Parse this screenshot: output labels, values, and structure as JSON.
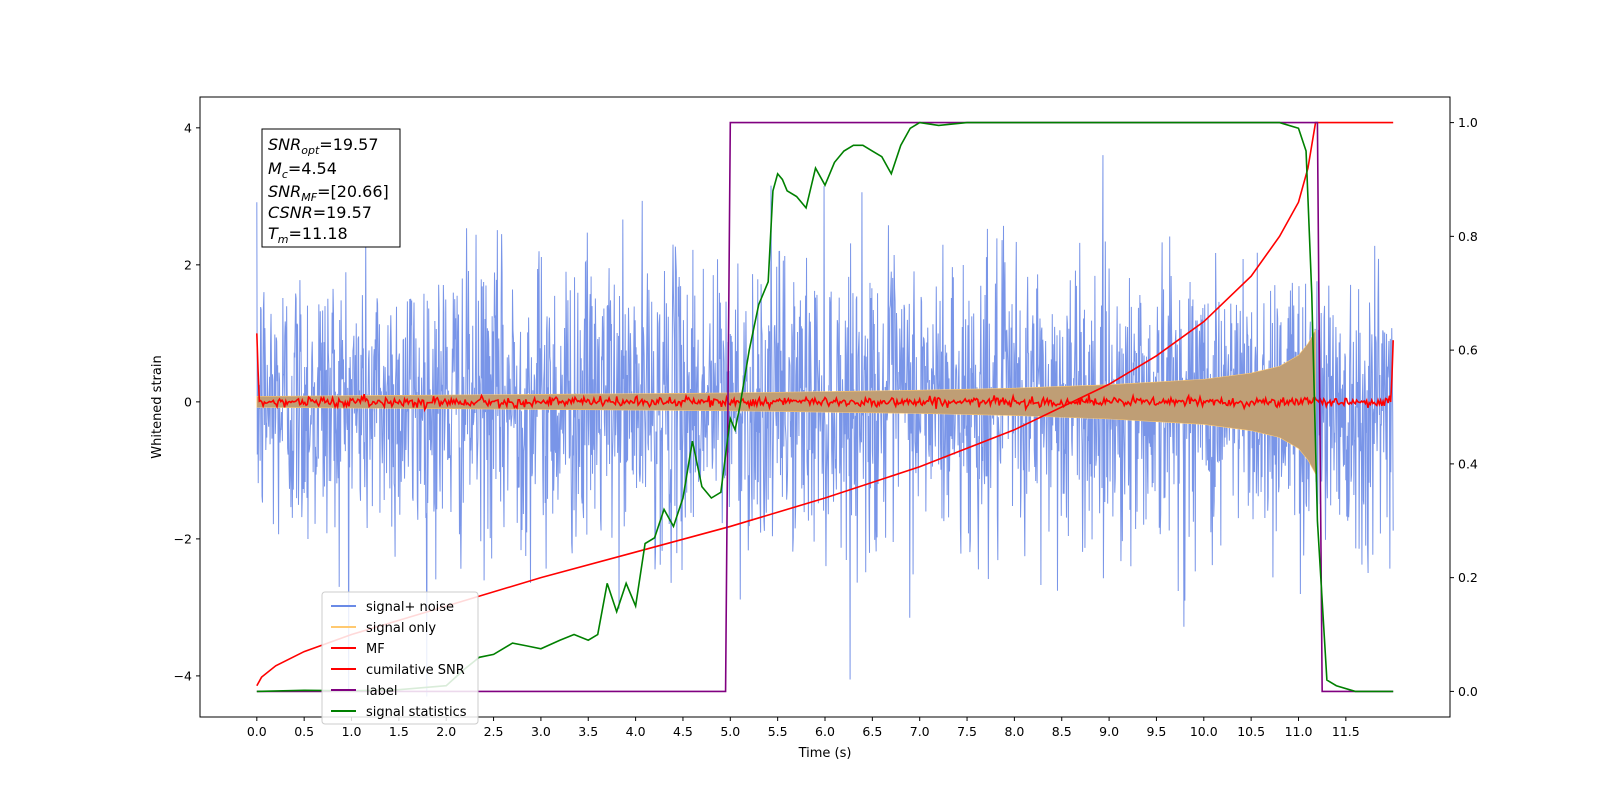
{
  "chart_data": {
    "type": "line",
    "xlabel": "Time (s)",
    "ylabel_left": "Whitened strain",
    "ylabel_right": "",
    "x_ticks": [
      "0.0",
      "0.5",
      "1.0",
      "1.5",
      "2.0",
      "2.5",
      "3.0",
      "3.5",
      "4.0",
      "4.5",
      "5.0",
      "5.5",
      "6.0",
      "6.5",
      "7.0",
      "7.5",
      "8.0",
      "8.5",
      "9.0",
      "9.5",
      "10.0",
      "10.5",
      "11.0",
      "11.5"
    ],
    "y_left_ticks": [
      "4",
      "2",
      "0",
      "−2",
      "−4"
    ],
    "y_right_ticks": [
      "1.0",
      "0.8",
      "0.6",
      "0.4",
      "0.2",
      "0.0"
    ],
    "xlim": [
      -0.6,
      12.6
    ],
    "ylim_left": [
      -4.6,
      4.45
    ],
    "ylim_right": [
      -0.045,
      1.045
    ],
    "info_box": {
      "snr_opt": {
        "base": "SNR",
        "sub": "opt",
        "value": "=19.57"
      },
      "mc": {
        "base": "M",
        "sub": "c",
        "value": "=4.54"
      },
      "snr_mf": {
        "base": "SNR",
        "sub": "MF",
        "value": "=[20.66]"
      },
      "csnr": {
        "base": "CSNR",
        "sub": "",
        "value": "=19.57"
      },
      "tm": {
        "base": "T",
        "sub": "m",
        "value": "=11.18"
      }
    },
    "legend": {
      "placement": "lower-left",
      "entries": [
        "signal+ noise",
        "signal only",
        "MF",
        "cumilative SNR",
        "label",
        "signal statistics"
      ]
    },
    "colors": {
      "noise": "#6a8ae6",
      "signal": "#ffc970",
      "signal_fill": "#bf9e75",
      "mf": "#ff0000",
      "cumulative": "#ff0000",
      "label": "#800080",
      "stats": "#008000"
    },
    "series": [
      {
        "name": "signal+ noise",
        "axis": "left",
        "description_range": [
          -3.8,
          3.6
        ],
        "x_range": [
          0.0,
          12.0
        ]
      },
      {
        "name": "signal only",
        "axis": "left",
        "envelope_x": [
          0.0,
          1.0,
          2.0,
          3.0,
          4.0,
          5.0,
          6.0,
          7.0,
          8.0,
          9.0,
          10.0,
          10.5,
          10.8,
          11.0,
          11.1,
          11.18
        ],
        "envelope_amp": [
          0.08,
          0.09,
          0.1,
          0.11,
          0.12,
          0.13,
          0.15,
          0.17,
          0.2,
          0.25,
          0.33,
          0.42,
          0.52,
          0.68,
          0.85,
          1.05
        ]
      },
      {
        "name": "MF",
        "axis": "left",
        "x_range": [
          0.0,
          12.0
        ],
        "baseline": 0.0,
        "noise_amp": 0.07,
        "edge_values": [
          1.0,
          0.9
        ]
      },
      {
        "name": "cumilative SNR",
        "axis": "right",
        "x": [
          0.0,
          0.05,
          0.2,
          0.5,
          1.0,
          2.0,
          3.0,
          4.0,
          5.0,
          6.0,
          7.0,
          8.0,
          9.0,
          9.5,
          10.0,
          10.5,
          10.8,
          11.0,
          11.1,
          11.18,
          11.2,
          12.0
        ],
        "y": [
          0.01,
          0.025,
          0.045,
          0.07,
          0.1,
          0.15,
          0.2,
          0.245,
          0.29,
          0.34,
          0.395,
          0.46,
          0.54,
          0.59,
          0.65,
          0.73,
          0.8,
          0.86,
          0.92,
          1.0,
          1.0,
          1.0
        ]
      },
      {
        "name": "label",
        "axis": "right",
        "x": [
          0.0,
          4.95,
          4.95,
          5.0,
          11.2,
          11.25,
          12.0
        ],
        "y": [
          0.0,
          0.0,
          0.0,
          1.0,
          1.0,
          0.0,
          0.0
        ]
      },
      {
        "name": "signal statistics",
        "axis": "right",
        "x": [
          0.0,
          0.5,
          1.0,
          1.5,
          2.0,
          2.2,
          2.35,
          2.5,
          2.7,
          2.85,
          3.0,
          3.2,
          3.35,
          3.5,
          3.6,
          3.7,
          3.8,
          3.9,
          4.0,
          4.1,
          4.2,
          4.3,
          4.4,
          4.5,
          4.6,
          4.7,
          4.8,
          4.9,
          5.0,
          5.05,
          5.1,
          5.2,
          5.3,
          5.4,
          5.45,
          5.5,
          5.55,
          5.6,
          5.7,
          5.8,
          5.9,
          6.0,
          6.1,
          6.2,
          6.3,
          6.4,
          6.5,
          6.6,
          6.7,
          6.8,
          6.9,
          7.0,
          7.2,
          7.5,
          8.0,
          9.0,
          10.0,
          10.8,
          11.0,
          11.08,
          11.14,
          11.2,
          11.3,
          11.4,
          11.6,
          12.0
        ],
        "y": [
          0.0,
          0.002,
          0.001,
          0.003,
          0.01,
          0.04,
          0.06,
          0.065,
          0.085,
          0.08,
          0.075,
          0.09,
          0.1,
          0.09,
          0.1,
          0.19,
          0.14,
          0.19,
          0.15,
          0.26,
          0.27,
          0.32,
          0.29,
          0.34,
          0.44,
          0.36,
          0.34,
          0.35,
          0.48,
          0.46,
          0.5,
          0.6,
          0.68,
          0.72,
          0.88,
          0.91,
          0.9,
          0.88,
          0.87,
          0.85,
          0.92,
          0.89,
          0.93,
          0.95,
          0.96,
          0.96,
          0.95,
          0.94,
          0.91,
          0.96,
          0.99,
          1.0,
          0.995,
          1.0,
          1.0,
          1.0,
          1.0,
          1.0,
          0.99,
          0.95,
          0.7,
          0.3,
          0.02,
          0.01,
          0.0,
          0.0
        ]
      }
    ]
  }
}
